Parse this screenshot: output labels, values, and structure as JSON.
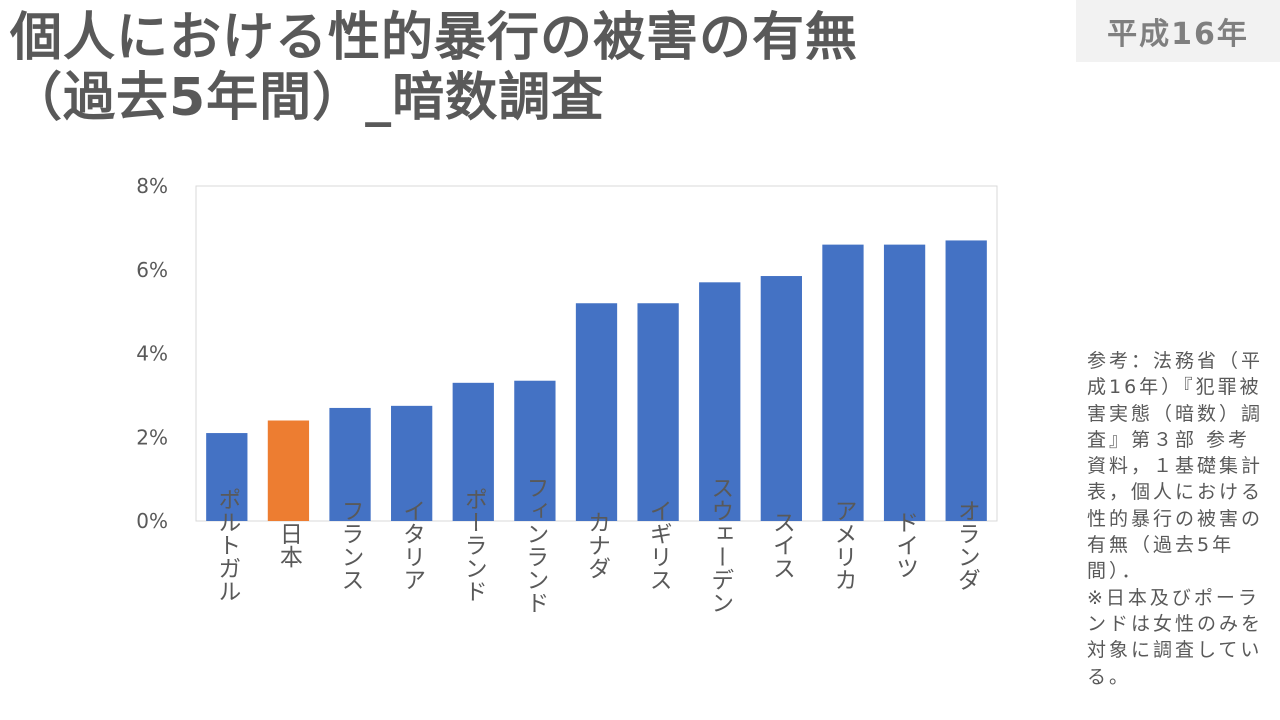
{
  "title": {
    "line1": "個人における性的暴行の被害の有無",
    "line2": "（過去5年間）_暗数調査"
  },
  "era_badge": "平成16年",
  "source_note": "参考：法務省（平成16年）『犯罪被害実態（暗数）調査』第３部 参考資料，１基礎集計表，個人における性的暴行の被害の有無（過去5年間）．\n※日本及びポーランドは女性のみを対象に調査している。",
  "colors": {
    "bar": "#4472c4",
    "highlight": "#ed7d31",
    "grid": "#d9d9d9",
    "text": "#595959"
  },
  "chart_data": {
    "type": "bar",
    "categories": [
      "ポルトガル",
      "日本",
      "フランス",
      "イタリア",
      "ポーランド",
      "フィンランド",
      "カナダ",
      "イギリス",
      "スウェーデン",
      "スイス",
      "アメリカ",
      "ドイツ",
      "オランダ"
    ],
    "values": [
      2.1,
      2.4,
      2.7,
      2.75,
      3.3,
      3.35,
      5.2,
      5.2,
      5.7,
      5.85,
      6.6,
      6.6,
      6.7
    ],
    "highlight": [
      "日本"
    ],
    "yticks": [
      "0%",
      "2%",
      "4%",
      "6%",
      "8%"
    ],
    "ylim": [
      0,
      8
    ],
    "title": "",
    "xlabel": "",
    "ylabel": "",
    "grid": false
  }
}
